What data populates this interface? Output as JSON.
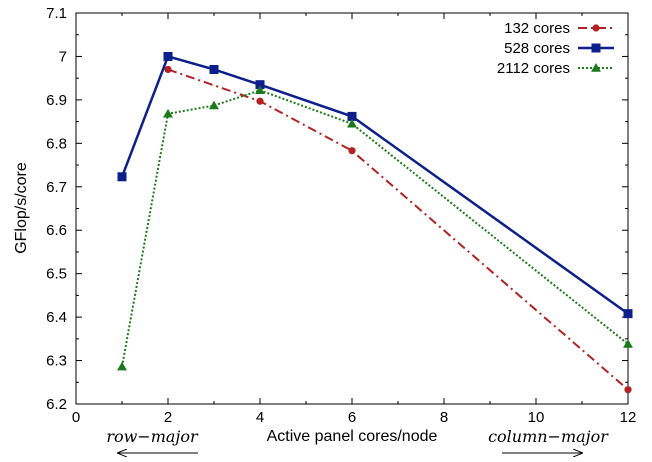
{
  "chart_data": {
    "type": "line",
    "title": "",
    "xlabel": "Active panel cores/node",
    "ylabel": "GFlop/s/core",
    "xlim": [
      0,
      12
    ],
    "ylim": [
      6.2,
      7.1
    ],
    "x_ticks": [
      "0",
      "2",
      "4",
      "6",
      "8",
      "10",
      "12"
    ],
    "y_ticks": [
      "6.2",
      "6.3",
      "6.4",
      "6.5",
      "6.6",
      "6.7",
      "6.8",
      "6.9",
      "7",
      "7.1"
    ],
    "grid": false,
    "legend_position": "top-right",
    "series": [
      {
        "name": "132 cores",
        "color": "#b22222",
        "line_style": "dash-dot",
        "marker": "circle",
        "x": [
          2,
          4,
          6,
          12
        ],
        "y": [
          6.97,
          6.897,
          6.783,
          6.233
        ]
      },
      {
        "name": "528 cores",
        "color": "#0d1f8a",
        "line_style": "solid",
        "marker": "square",
        "x": [
          1,
          2,
          3,
          4,
          6,
          12
        ],
        "y": [
          6.723,
          7.0,
          6.97,
          6.935,
          6.862,
          6.408
        ]
      },
      {
        "name": "2112 cores",
        "color": "#1a7a1a",
        "line_style": "dotted",
        "marker": "triangle",
        "x": [
          1,
          2,
          3,
          4,
          6,
          12
        ],
        "y": [
          6.286,
          6.868,
          6.887,
          6.922,
          6.845,
          6.338
        ]
      }
    ],
    "annotations": [
      {
        "text": "row−major",
        "arrow": "left"
      },
      {
        "text": "column−major",
        "arrow": "right"
      }
    ]
  }
}
